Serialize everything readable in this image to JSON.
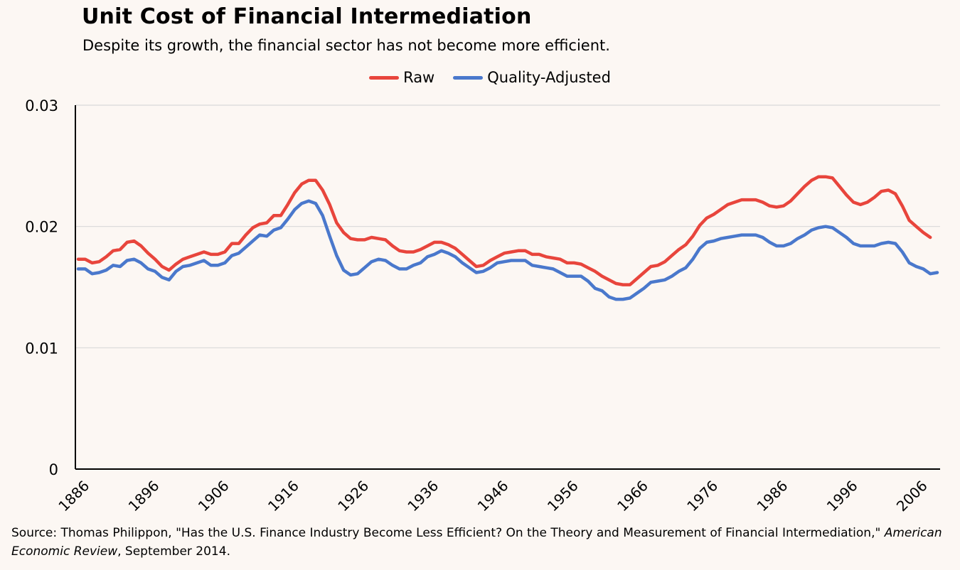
{
  "title": "Unit Cost of Financial Intermediation",
  "subtitle": "Despite its growth, the financial sector has not become more efficient.",
  "colors": {
    "raw": "#e8453c",
    "quality_adjusted": "#4a78cc",
    "grid": "#d9d9d9",
    "axis": "#000000",
    "background": "#fcf7f3"
  },
  "source": {
    "prefix": "Source: Thomas Philippon, \"Has the U.S. Finance Industry Become Less Efficient? On the Theory and Measurement of Financial Intermediation,\" ",
    "journal": "American Economic Review",
    "suffix": ", September 2014."
  },
  "chart_data": {
    "type": "line",
    "title": "Unit Cost of Financial Intermediation",
    "subtitle": "Despite its growth, the financial sector has not become more efficient.",
    "xlabel": "",
    "ylabel": "",
    "xlim": [
      1886,
      2009
    ],
    "ylim": [
      0,
      0.03
    ],
    "yticks": [
      0,
      0.01,
      0.02,
      0.03
    ],
    "ytick_labels": [
      "0",
      "0.01",
      "0.02",
      "0.03"
    ],
    "xticks": [
      1886,
      1896,
      1906,
      1916,
      1926,
      1936,
      1946,
      1956,
      1966,
      1976,
      1986,
      1996,
      2006
    ],
    "xtick_labels": [
      "1886",
      "1896",
      "1906",
      "1916",
      "1926",
      "1936",
      "1946",
      "1956",
      "1966",
      "1976",
      "1986",
      "1996",
      "2006"
    ],
    "grid": true,
    "legend_position": "top-center",
    "series": [
      {
        "name": "Raw",
        "x": [
          1886,
          1887,
          1888,
          1889,
          1890,
          1891,
          1892,
          1893,
          1894,
          1895,
          1896,
          1897,
          1898,
          1899,
          1900,
          1901,
          1902,
          1903,
          1904,
          1905,
          1906,
          1907,
          1908,
          1909,
          1910,
          1911,
          1912,
          1913,
          1914,
          1915,
          1916,
          1917,
          1918,
          1919,
          1920,
          1921,
          1922,
          1923,
          1924,
          1925,
          1926,
          1927,
          1928,
          1929,
          1930,
          1931,
          1932,
          1933,
          1934,
          1935,
          1936,
          1937,
          1938,
          1939,
          1940,
          1941,
          1942,
          1943,
          1944,
          1945,
          1946,
          1947,
          1948,
          1949,
          1950,
          1951,
          1952,
          1953,
          1954,
          1955,
          1956,
          1957,
          1958,
          1959,
          1960,
          1961,
          1962,
          1963,
          1964,
          1965,
          1966,
          1967,
          1968,
          1969,
          1970,
          1971,
          1972,
          1973,
          1974,
          1975,
          1976,
          1977,
          1978,
          1979,
          1980,
          1981,
          1982,
          1983,
          1984,
          1985,
          1986,
          1987,
          1988,
          1989,
          1990,
          1991,
          1992,
          1993,
          1994,
          1995,
          1996,
          1997,
          1998,
          1999,
          2000,
          2001,
          2002,
          2003,
          2004,
          2005,
          2006,
          2007,
          2008
        ],
        "y": [
          0.0173,
          0.0173,
          0.017,
          0.0171,
          0.0175,
          0.018,
          0.0181,
          0.0187,
          0.0188,
          0.0184,
          0.0178,
          0.0173,
          0.0167,
          0.0164,
          0.0169,
          0.0173,
          0.0175,
          0.0177,
          0.0179,
          0.0177,
          0.0177,
          0.0179,
          0.0186,
          0.0186,
          0.0193,
          0.0199,
          0.0202,
          0.0203,
          0.0209,
          0.0209,
          0.0218,
          0.0228,
          0.0235,
          0.0238,
          0.0238,
          0.023,
          0.0218,
          0.0203,
          0.0195,
          0.019,
          0.0189,
          0.0189,
          0.0191,
          0.019,
          0.0189,
          0.0184,
          0.018,
          0.0179,
          0.0179,
          0.0181,
          0.0184,
          0.0187,
          0.0187,
          0.0185,
          0.0182,
          0.0177,
          0.0172,
          0.0167,
          0.0168,
          0.0172,
          0.0175,
          0.0178,
          0.0179,
          0.018,
          0.018,
          0.0177,
          0.0177,
          0.0175,
          0.0174,
          0.0173,
          0.017,
          0.017,
          0.0169,
          0.0166,
          0.0163,
          0.0159,
          0.0156,
          0.0153,
          0.0152,
          0.0152,
          0.0157,
          0.0162,
          0.0167,
          0.0168,
          0.0171,
          0.0176,
          0.0181,
          0.0185,
          0.0192,
          0.0201,
          0.0207,
          0.021,
          0.0214,
          0.0218,
          0.022,
          0.0222,
          0.0222,
          0.0222,
          0.022,
          0.0217,
          0.0216,
          0.0217,
          0.0221,
          0.0227,
          0.0233,
          0.0238,
          0.0241,
          0.0241,
          0.024,
          0.0233,
          0.0226,
          0.022,
          0.0218,
          0.022,
          0.0224,
          0.0229,
          0.023,
          0.0227,
          0.0217,
          0.0205,
          0.02,
          0.0195,
          0.0191
        ]
      },
      {
        "name": "Quality-Adjusted",
        "x": [
          1886,
          1887,
          1888,
          1889,
          1890,
          1891,
          1892,
          1893,
          1894,
          1895,
          1896,
          1897,
          1898,
          1899,
          1900,
          1901,
          1902,
          1903,
          1904,
          1905,
          1906,
          1907,
          1908,
          1909,
          1910,
          1911,
          1912,
          1913,
          1914,
          1915,
          1916,
          1917,
          1918,
          1919,
          1920,
          1921,
          1922,
          1923,
          1924,
          1925,
          1926,
          1927,
          1928,
          1929,
          1930,
          1931,
          1932,
          1933,
          1934,
          1935,
          1936,
          1937,
          1938,
          1939,
          1940,
          1941,
          1942,
          1943,
          1944,
          1945,
          1946,
          1947,
          1948,
          1949,
          1950,
          1951,
          1952,
          1953,
          1954,
          1955,
          1956,
          1957,
          1958,
          1959,
          1960,
          1961,
          1962,
          1963,
          1964,
          1965,
          1966,
          1967,
          1968,
          1969,
          1970,
          1971,
          1972,
          1973,
          1974,
          1975,
          1976,
          1977,
          1978,
          1979,
          1980,
          1981,
          1982,
          1983,
          1984,
          1985,
          1986,
          1987,
          1988,
          1989,
          1990,
          1991,
          1992,
          1993,
          1994,
          1995,
          1996,
          1997,
          1998,
          1999,
          2000,
          2001,
          2002,
          2003,
          2004,
          2005,
          2006,
          2007,
          2008,
          2009
        ],
        "y": [
          0.0165,
          0.0165,
          0.0161,
          0.0162,
          0.0164,
          0.0168,
          0.0167,
          0.0172,
          0.0173,
          0.017,
          0.0165,
          0.0163,
          0.0158,
          0.0156,
          0.0163,
          0.0167,
          0.0168,
          0.017,
          0.0172,
          0.0168,
          0.0168,
          0.017,
          0.0176,
          0.0178,
          0.0183,
          0.0188,
          0.0193,
          0.0192,
          0.0197,
          0.0199,
          0.0206,
          0.0214,
          0.0219,
          0.0221,
          0.0219,
          0.0209,
          0.0192,
          0.0176,
          0.0164,
          0.016,
          0.0161,
          0.0166,
          0.0171,
          0.0173,
          0.0172,
          0.0168,
          0.0165,
          0.0165,
          0.0168,
          0.017,
          0.0175,
          0.0177,
          0.018,
          0.0178,
          0.0175,
          0.017,
          0.0166,
          0.0162,
          0.0163,
          0.0166,
          0.017,
          0.0171,
          0.0172,
          0.0172,
          0.0172,
          0.0168,
          0.0167,
          0.0166,
          0.0165,
          0.0162,
          0.0159,
          0.0159,
          0.0159,
          0.0155,
          0.0149,
          0.0147,
          0.0142,
          0.014,
          0.014,
          0.0141,
          0.0145,
          0.0149,
          0.0154,
          0.0155,
          0.0156,
          0.0159,
          0.0163,
          0.0166,
          0.0173,
          0.0182,
          0.0187,
          0.0188,
          0.019,
          0.0191,
          0.0192,
          0.0193,
          0.0193,
          0.0193,
          0.0191,
          0.0187,
          0.0184,
          0.0184,
          0.0186,
          0.019,
          0.0193,
          0.0197,
          0.0199,
          0.02,
          0.0199,
          0.0195,
          0.0191,
          0.0186,
          0.0184,
          0.0184,
          0.0184,
          0.0186,
          0.0187,
          0.0186,
          0.0179,
          0.017,
          0.0167,
          0.0165,
          0.0161,
          0.0162
        ]
      }
    ]
  }
}
